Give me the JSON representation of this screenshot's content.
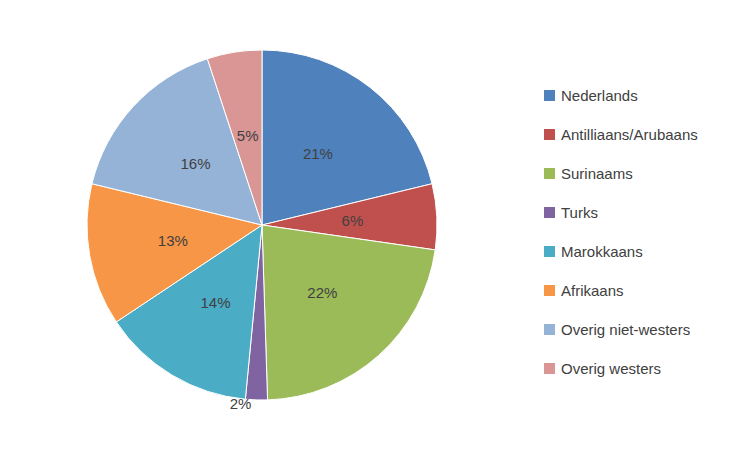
{
  "chart_data": {
    "type": "pie",
    "categories": [
      "Nederlands",
      "Antilliaans/Arubaans",
      "Surinaams",
      "Turks",
      "Marokkaans",
      "Afrikaans",
      "Overig niet-westers",
      "Overig westers"
    ],
    "values": [
      21,
      6,
      22,
      2,
      14,
      13,
      16,
      5
    ],
    "value_labels": [
      "21%",
      "6%",
      "22%",
      "2%",
      "14%",
      "13%",
      "16%",
      "5%"
    ],
    "colors": [
      "#4f81bd",
      "#c0504d",
      "#9bbb59",
      "#8064a2",
      "#4bacc6",
      "#f79646",
      "#95b3d7",
      "#d99694"
    ],
    "data_labels": true,
    "legend": "right"
  }
}
